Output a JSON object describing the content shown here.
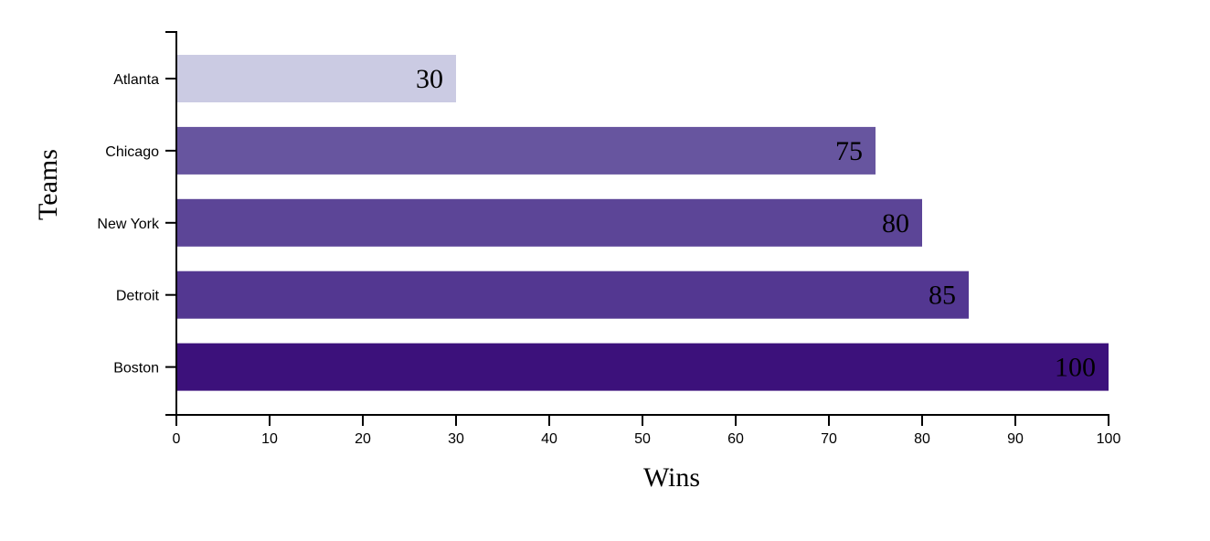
{
  "chart_data": {
    "type": "bar",
    "orientation": "horizontal",
    "title": "",
    "xlabel": "Wins",
    "ylabel": "Teams",
    "xlim": [
      0,
      100
    ],
    "xticks": [
      0,
      10,
      20,
      30,
      40,
      50,
      60,
      70,
      80,
      90,
      100
    ],
    "categories": [
      "Atlanta",
      "Chicago",
      "New York",
      "Detroit",
      "Boston"
    ],
    "values": [
      30,
      75,
      80,
      85,
      100
    ],
    "colors": [
      "#cbcbe3",
      "#67559f",
      "#5c4597",
      "#533791",
      "#3c117b"
    ],
    "grid": false,
    "legend": "none"
  }
}
